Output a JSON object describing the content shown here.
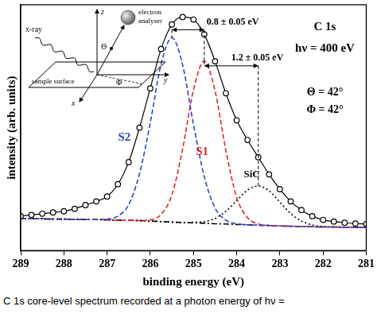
{
  "chart_data": {
    "type": "line",
    "x_label": "binding energy (eV)",
    "y_label": "intensity (arb. units)",
    "x": [
      289,
      288.75,
      288.5,
      288.25,
      288,
      287.75,
      287.5,
      287.25,
      287,
      286.75,
      286.5,
      286.25,
      286,
      285.75,
      285.5,
      285.25,
      285,
      284.75,
      284.5,
      284.25,
      284,
      283.75,
      283.5,
      283.25,
      283,
      282.75,
      282.5,
      282.25,
      282,
      281.75,
      281.5,
      281.25,
      281
    ],
    "series": [
      {
        "color": "#000000",
        "marker": "circle",
        "line_style": "solid",
        "values": [
          14,
          14.5,
          15,
          15.5,
          16,
          17,
          18.5,
          20,
          22,
          27,
          36,
          50,
          66,
          82,
          92,
          95,
          94,
          88,
          77,
          64,
          53,
          45,
          38,
          31,
          25,
          20,
          16.5,
          14,
          12.5,
          11.8,
          11.3,
          11,
          10.8
        ]
      },
      {
        "name": "S2",
        "color": "#2b47c9",
        "marker": "none",
        "line_style": "dashed",
        "values": [
          13,
          12.9,
          12.9,
          12.8,
          12.8,
          12.7,
          12.6,
          12.6,
          12.8,
          14,
          18.7,
          31.2,
          52,
          75.8,
          86.6,
          75.4,
          51.3,
          30.1,
          17.3,
          12.4,
          10.9,
          10.5,
          10.3,
          10.2,
          10,
          9.9,
          9.8,
          9.7,
          9.6,
          9.6,
          9.5,
          9.5,
          9.4
        ]
      },
      {
        "name": "S1",
        "color": "#e3262c",
        "marker": "none",
        "line_style": "dashed",
        "values": [
          13,
          12.9,
          12.9,
          12.8,
          12.8,
          12.7,
          12.6,
          12.6,
          12.5,
          12.4,
          12.3,
          12.2,
          12.5,
          14.7,
          22.6,
          41.4,
          65.3,
          77.1,
          64.9,
          40.8,
          21.6,
          13.4,
          10.8,
          10.2,
          10,
          9.9,
          9.8,
          9.7,
          9.6,
          9.6,
          9.5,
          9.5,
          9.4
        ]
      },
      {
        "name": "SiC",
        "color": "#000000",
        "marker": "none",
        "line_style": "dotted",
        "values": [
          13,
          12.9,
          12.9,
          12.8,
          12.8,
          12.7,
          12.6,
          12.6,
          12.5,
          12.4,
          12.3,
          12.2,
          12,
          11.8,
          11.6,
          11.4,
          11.5,
          11.8,
          13.1,
          16,
          20.3,
          24.6,
          26.3,
          24.3,
          19.7,
          15.1,
          12,
          10.4,
          9.8,
          9.6,
          9.5,
          9.5,
          9.4
        ]
      },
      {
        "color": "#000000",
        "marker": "none",
        "line_style": "dashdot",
        "values": [
          13,
          12.9,
          12.9,
          12.8,
          12.8,
          12.7,
          12.6,
          12.6,
          12.5,
          12.4,
          12.3,
          12.2,
          12,
          11.8,
          11.6,
          11.4,
          11.3,
          11.1,
          10.9,
          10.8,
          10.6,
          10.5,
          10.3,
          10.2,
          10,
          9.9,
          9.8,
          9.7,
          9.6,
          9.6,
          9.5,
          9.5,
          9.4
        ]
      }
    ],
    "xlim": [
      289,
      281
    ],
    "xticks": [
      289,
      288,
      287,
      286,
      285,
      284,
      283,
      282,
      281
    ],
    "ylim": [
      0,
      100
    ],
    "tick_labels": "x",
    "grid": false,
    "annotations": {
      "corner": [
        "C 1s",
        "hν = 400 eV",
        "Θ = 42°",
        "Φ = 42°"
      ],
      "separations": [
        {
          "text": "0.8 ± 0.05 eV",
          "between": [
            "S2",
            "S1"
          ]
        },
        {
          "text": "1.2 ± 0.05 eV",
          "between": [
            "S1",
            "SiC"
          ]
        }
      ]
    },
    "inset_labels": {
      "x_ray": "x-ray",
      "analyser": "electron analyser",
      "surface": "sample surface",
      "z": "z",
      "y": "y",
      "x": "x",
      "theta": "Θ",
      "phi": "Φ"
    },
    "caption": "C 1s core-level spectrum recorded at a photon energy of hν ="
  }
}
